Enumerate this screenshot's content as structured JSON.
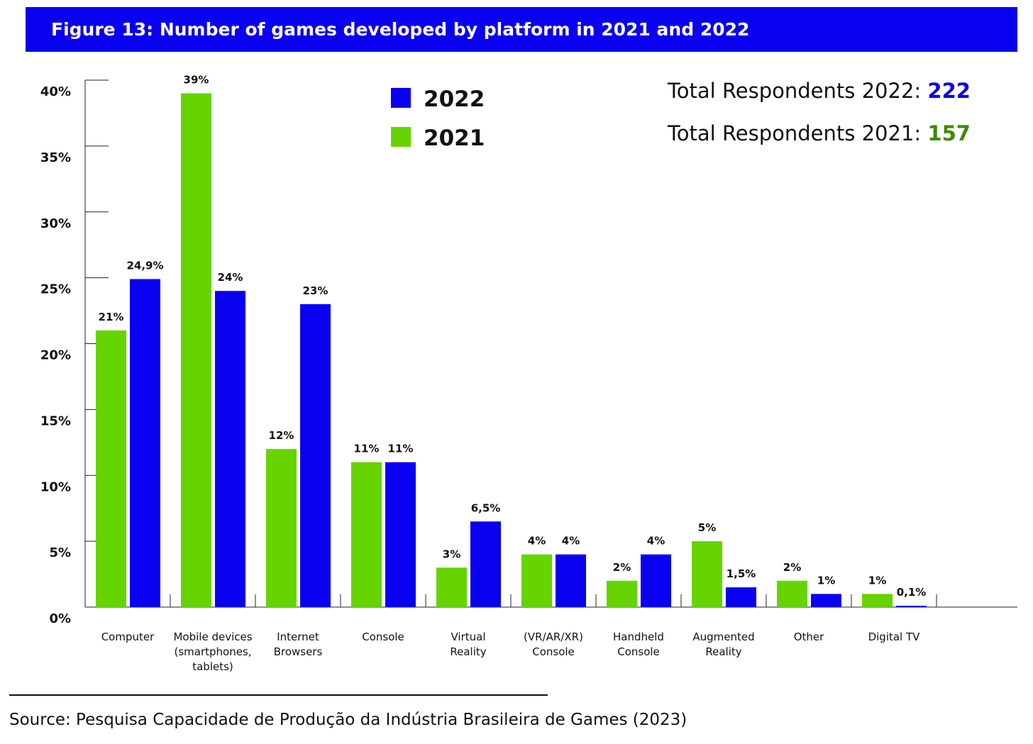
{
  "chart_data": {
    "type": "bar",
    "title": "Figure 13: Number of games developed by platform in 2021 and 2022",
    "categories": [
      [
        "Computer"
      ],
      [
        "Mobile devices",
        "(smartphones,",
        "tablets)"
      ],
      [
        "Internet",
        "Browsers"
      ],
      [
        "Console"
      ],
      [
        "Virtual",
        "Reality"
      ],
      [
        "(VR/AR/XR)",
        "Console"
      ],
      [
        "Handheld",
        "Console"
      ],
      [
        "Augmented",
        "Reality"
      ],
      [
        "Other"
      ],
      [
        "Digital TV"
      ]
    ],
    "series": [
      {
        "name": "2021",
        "color": "#66d400",
        "values": [
          21,
          39,
          12,
          11,
          3,
          4,
          2,
          5,
          2,
          1
        ],
        "labels": [
          "21%",
          "39%",
          "12%",
          "11%",
          "3%",
          "4%",
          "2%",
          "5%",
          "2%",
          "1%"
        ]
      },
      {
        "name": "2022",
        "color": "#0a00f0",
        "values": [
          24.9,
          24,
          23,
          11,
          6.5,
          4,
          4,
          1.5,
          1,
          0.1
        ],
        "labels": [
          "24,9%",
          "24%",
          "23%",
          "11%",
          "6,5%",
          "4%",
          "4%",
          "1,5%",
          "1%",
          "0,1%"
        ]
      }
    ],
    "ylim": [
      0,
      40
    ],
    "yticks": [
      "0%",
      "5%",
      "10%",
      "15%",
      "20%",
      "25%",
      "30%",
      "35%",
      "40%"
    ],
    "legend": {
      "placement": "top-center",
      "entries": [
        "2022",
        "2021"
      ]
    },
    "xlabel": "",
    "ylabel": ""
  },
  "totals": [
    {
      "label": "Total Respondents 2022",
      "value": "222",
      "color": "#0a00f0"
    },
    {
      "label": "Total Respondents 2021",
      "value": "157",
      "color": "#3f8a00"
    }
  ],
  "source": "Source: Pesquisa Capacidade de Produção da Indústria Brasileira de Games (2023)"
}
